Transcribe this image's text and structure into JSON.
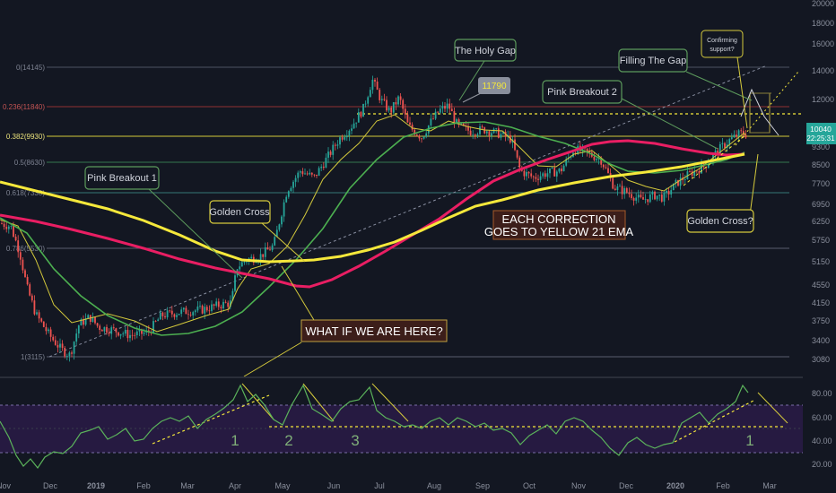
{
  "chart_data": {
    "type": "candlestick",
    "price_axis": {
      "scale": "log",
      "ticks": [
        20000,
        18000,
        16000,
        14000,
        12000,
        10040,
        9300,
        8500,
        7700,
        6950,
        6250,
        5750,
        5150,
        4550,
        4150,
        3750,
        3400,
        3080
      ],
      "tick_labels": [
        "20000",
        "18000",
        "16000",
        "14000",
        "12000",
        "10040",
        "9300",
        "8500",
        "7700",
        "6950",
        "6250",
        "5750",
        "5150",
        "4550",
        "4150",
        "3750",
        "3400",
        "3080"
      ],
      "current_price": "10040",
      "countdown": "22:25:31"
    },
    "rsi_axis": {
      "ticks": [
        "80.00",
        "60.00",
        "40.00",
        "20.00"
      ],
      "upper_band": 71,
      "lower_band": 30
    },
    "time_axis": {
      "labels": [
        "Nov",
        "Dec",
        "2019",
        "Feb",
        "Mar",
        "Apr",
        "May",
        "Jun",
        "Jul",
        "Aug",
        "Sep",
        "Oct",
        "Nov",
        "Dec",
        "2020",
        "Feb",
        "Mar"
      ]
    },
    "fib_levels": [
      {
        "label": "0(14145)",
        "value": 14145
      },
      {
        "label": "0.236(11840)",
        "value": 11840
      },
      {
        "label": "0.382(9930)",
        "value": 9930
      },
      {
        "label": "0.5(8630)",
        "value": 8630
      },
      {
        "label": "0.618(7330)",
        "value": 7330
      },
      {
        "label": "0.786(5530)",
        "value": 5530
      },
      {
        "label": "1(3115)",
        "value": 3115
      }
    ],
    "annotations": {
      "holy_gap": "The Holy Gap",
      "gap_price": "11790",
      "filling_gap": "Filling The Gap",
      "confirming": [
        "Confirming",
        "support?"
      ],
      "pink_breakout_2": "Pink Breakout 2",
      "pink_breakout_1": "Pink Breakout 1",
      "golden_cross": "Golden Cross",
      "golden_cross_q": "Golden Cross?",
      "correction": [
        "EACH CORRECTION",
        "GOES TO YELLOW 21 EMA"
      ],
      "what_if": "WHAT IF WE ARE HERE?",
      "rsi_counts": [
        "1",
        "2",
        "3",
        "1"
      ]
    },
    "colors": {
      "background": "#131722",
      "up": "#26a69a",
      "down": "#ef5350",
      "ema_yellow": "#f5e83b",
      "ema_pink": "#e91e63",
      "ma_green": "#4caf50",
      "ma_thin_yellow": "#d4c93c",
      "rsi_line": "#5bb35b",
      "rsi_band": "#2a1b47",
      "callout_border": "#5c9a5c"
    }
  }
}
